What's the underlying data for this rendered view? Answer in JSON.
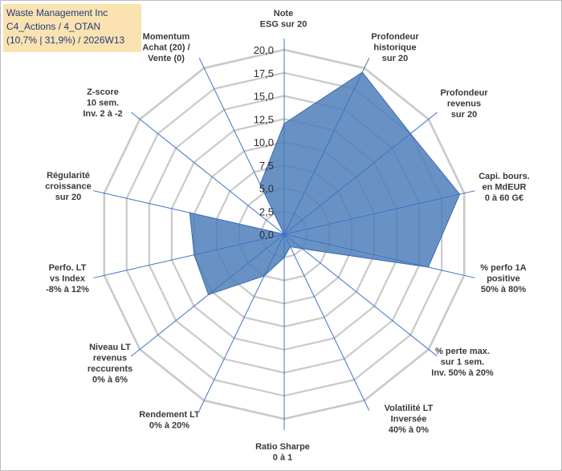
{
  "title": {
    "line1": "Waste Management Inc",
    "line2": "C4_Actions / 4_OTAN",
    "line3": "(10,7% | 31,9%) / 2026W13"
  },
  "chart_data": {
    "type": "radar",
    "title": "Waste Management Inc",
    "rmax": 20,
    "ticks": [
      "0,0",
      "2,5",
      "5,0",
      "7,5",
      "10,0",
      "12,5",
      "15,0",
      "17,5",
      "20,0"
    ],
    "axes": [
      {
        "label": [
          "Note",
          "ESG sur 20"
        ],
        "value": 12.0
      },
      {
        "label": [
          "Profondeur",
          "historique",
          "sur 20"
        ],
        "value": 19.5
      },
      {
        "label": [
          "Profondeur",
          "revenus",
          "sur 20"
        ],
        "value": 17.5
      },
      {
        "label": [
          "Capi. bours.",
          "en MdEUR",
          "0 à 60 G€"
        ],
        "value": 19.5
      },
      {
        "label": [
          "% perfo 1A",
          "positive",
          "50% à 80%"
        ],
        "value": 16.0
      },
      {
        "label": [
          "% perte max.",
          "sur 1 sem.",
          "Inv. 50% à 20%"
        ],
        "value": 2.5
      },
      {
        "label": [
          "Volatilité LT",
          "Inversée",
          "40% à 0%"
        ],
        "value": 1.5
      },
      {
        "label": [
          "Ratio Sharpe",
          "0 à 1"
        ],
        "value": 2.5
      },
      {
        "label": [
          "Rendement LT",
          "0% à 20%"
        ],
        "value": 5.0
      },
      {
        "label": [
          "Niveau LT",
          "revenus",
          "reccurents",
          "0% à 6%"
        ],
        "value": 10.5
      },
      {
        "label": [
          "Perfo. LT",
          "vs Index",
          "-8% à 12%"
        ],
        "value": 10.0
      },
      {
        "label": [
          "Régularité",
          "croissance",
          "sur 20"
        ],
        "value": 10.5
      },
      {
        "label": [
          "Z-score",
          "10 sem.",
          "Inv. 2 à -2"
        ],
        "value": 0.0
      },
      {
        "label": [
          "Momentum",
          "Achat (20) /",
          "Vente (0)"
        ],
        "value": 6.0
      }
    ]
  },
  "colors": {
    "fill": "#4f7fba",
    "stroke": "#3a6aa9",
    "grid": "#c9c9c9",
    "spoke": "#3d74c4"
  }
}
